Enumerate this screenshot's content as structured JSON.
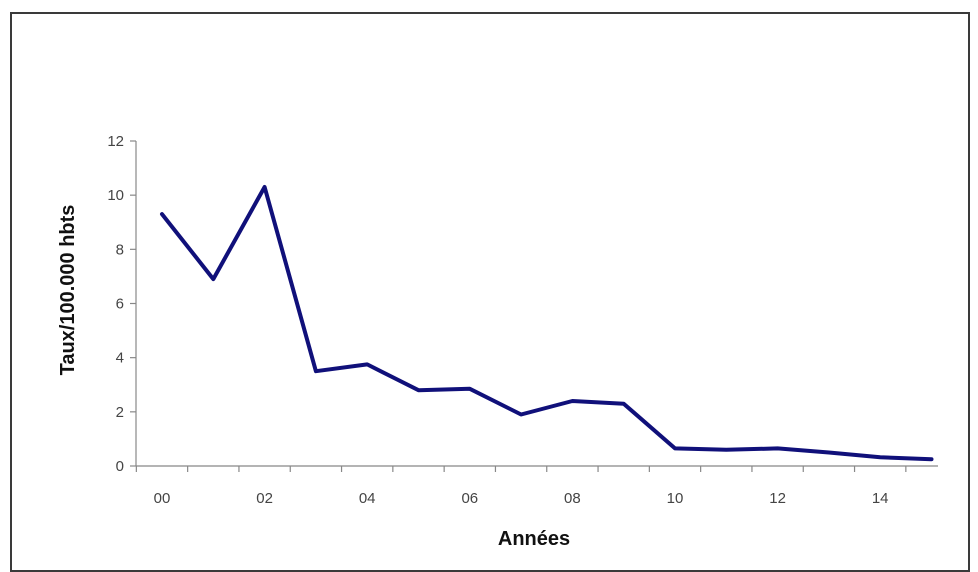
{
  "chart_data": {
    "type": "line",
    "title": "",
    "xlabel": "Années",
    "ylabel": "Taux/100.000 hbts",
    "x": [
      "00",
      "01",
      "02",
      "03",
      "04",
      "05",
      "06",
      "07",
      "08",
      "09",
      "10",
      "11",
      "12",
      "13",
      "14",
      "15"
    ],
    "x_tick_labels": [
      "00",
      "02",
      "04",
      "06",
      "08",
      "10",
      "12",
      "14"
    ],
    "y_tick_labels": [
      "0",
      "2",
      "4",
      "6",
      "8",
      "10",
      "12"
    ],
    "ylim": [
      0,
      12
    ],
    "grid": false,
    "series": [
      {
        "values": [
          9.3,
          6.9,
          10.3,
          3.5,
          3.75,
          2.8,
          2.85,
          1.9,
          2.4,
          2.3,
          0.65,
          0.6,
          0.65,
          0.5,
          0.32,
          0.25
        ],
        "color": "#10107a"
      }
    ]
  }
}
